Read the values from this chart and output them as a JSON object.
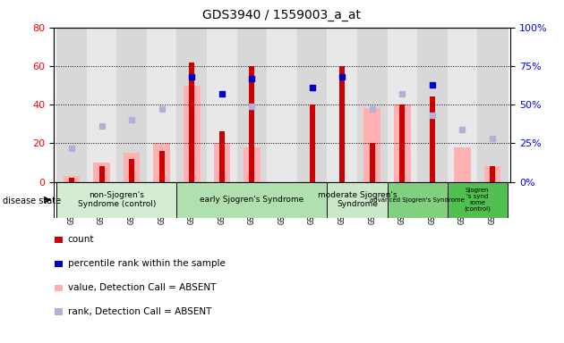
{
  "title": "GDS3940 / 1559003_a_at",
  "samples": [
    "GSM569473",
    "GSM569474",
    "GSM569475",
    "GSM569476",
    "GSM569478",
    "GSM569479",
    "GSM569480",
    "GSM569481",
    "GSM569482",
    "GSM569483",
    "GSM569484",
    "GSM569485",
    "GSM569471",
    "GSM569472",
    "GSM569477"
  ],
  "count": [
    2,
    8,
    12,
    16,
    62,
    26,
    60,
    0,
    40,
    60,
    20,
    40,
    44,
    0,
    8
  ],
  "percentile_rank": [
    null,
    null,
    null,
    null,
    68,
    57,
    67,
    null,
    61,
    68,
    null,
    null,
    63,
    null,
    null
  ],
  "value_absent": [
    3,
    10,
    15,
    20,
    50,
    20,
    18,
    null,
    null,
    null,
    38,
    40,
    null,
    18,
    8
  ],
  "rank_absent": [
    22,
    36,
    40,
    47,
    null,
    null,
    49,
    null,
    null,
    null,
    47,
    57,
    43,
    34,
    28
  ],
  "groups": [
    {
      "label": "non-Sjogren's\nSyndrome (control)",
      "start": 0,
      "end": 4,
      "color": "#d4ecd4"
    },
    {
      "label": "early Sjogren's Syndrome",
      "start": 4,
      "end": 9,
      "color": "#b0e0b0"
    },
    {
      "label": "moderate Sjogren's\nSyndrome",
      "start": 9,
      "end": 11,
      "color": "#c8e8c8"
    },
    {
      "label": "advanced Sjogren's Syndrome",
      "start": 11,
      "end": 13,
      "color": "#80d080"
    },
    {
      "label": "Sjogren\n's synd\nrome\n(control)",
      "start": 13,
      "end": 15,
      "color": "#50c050"
    }
  ],
  "ylim_left": [
    0,
    80
  ],
  "ylim_right": [
    0,
    100
  ],
  "yticks_left": [
    0,
    20,
    40,
    60,
    80
  ],
  "yticks_right": [
    0,
    25,
    50,
    75,
    100
  ],
  "bar_color_count": "#cc0000",
  "bar_color_absent": "#ffb0b0",
  "dot_color_rank": "#0000cc",
  "dot_color_rank_absent": "#b0b0d8",
  "bg_sample_even": "#d8d8d8",
  "bg_sample_odd": "#e8e8e8"
}
